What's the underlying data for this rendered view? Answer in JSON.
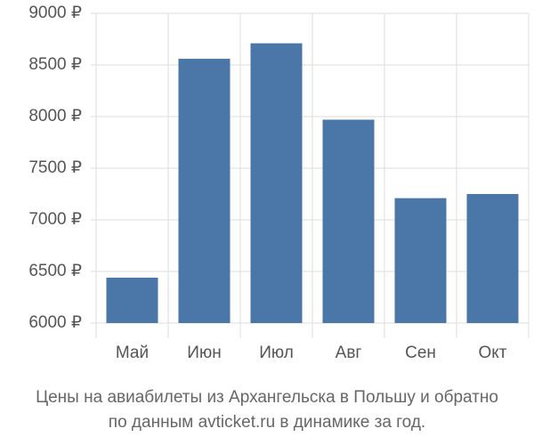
{
  "chart_data": {
    "type": "bar",
    "title": [
      "Цены на авиабилеты из Архангельска в Польшу и обратно",
      "по данным avticket.ru в динамике за год."
    ],
    "categories": [
      "Май",
      "Июн",
      "Июл",
      "Авг",
      "Сен",
      "Окт"
    ],
    "values": [
      6440,
      8560,
      8710,
      7970,
      7210,
      7250
    ],
    "color": "#4a76a8",
    "ylim": [
      6000,
      9000
    ],
    "yticks": [
      {
        "value": 6000,
        "label": "6000 ₽"
      },
      {
        "value": 6500,
        "label": "6500 ₽"
      },
      {
        "value": 7000,
        "label": "7000 ₽"
      },
      {
        "value": 7500,
        "label": "7500 ₽"
      },
      {
        "value": 8000,
        "label": "8000 ₽"
      },
      {
        "value": 8500,
        "label": "8500 ₽"
      },
      {
        "value": 9000,
        "label": "9000 ₽"
      }
    ],
    "grid": true
  }
}
